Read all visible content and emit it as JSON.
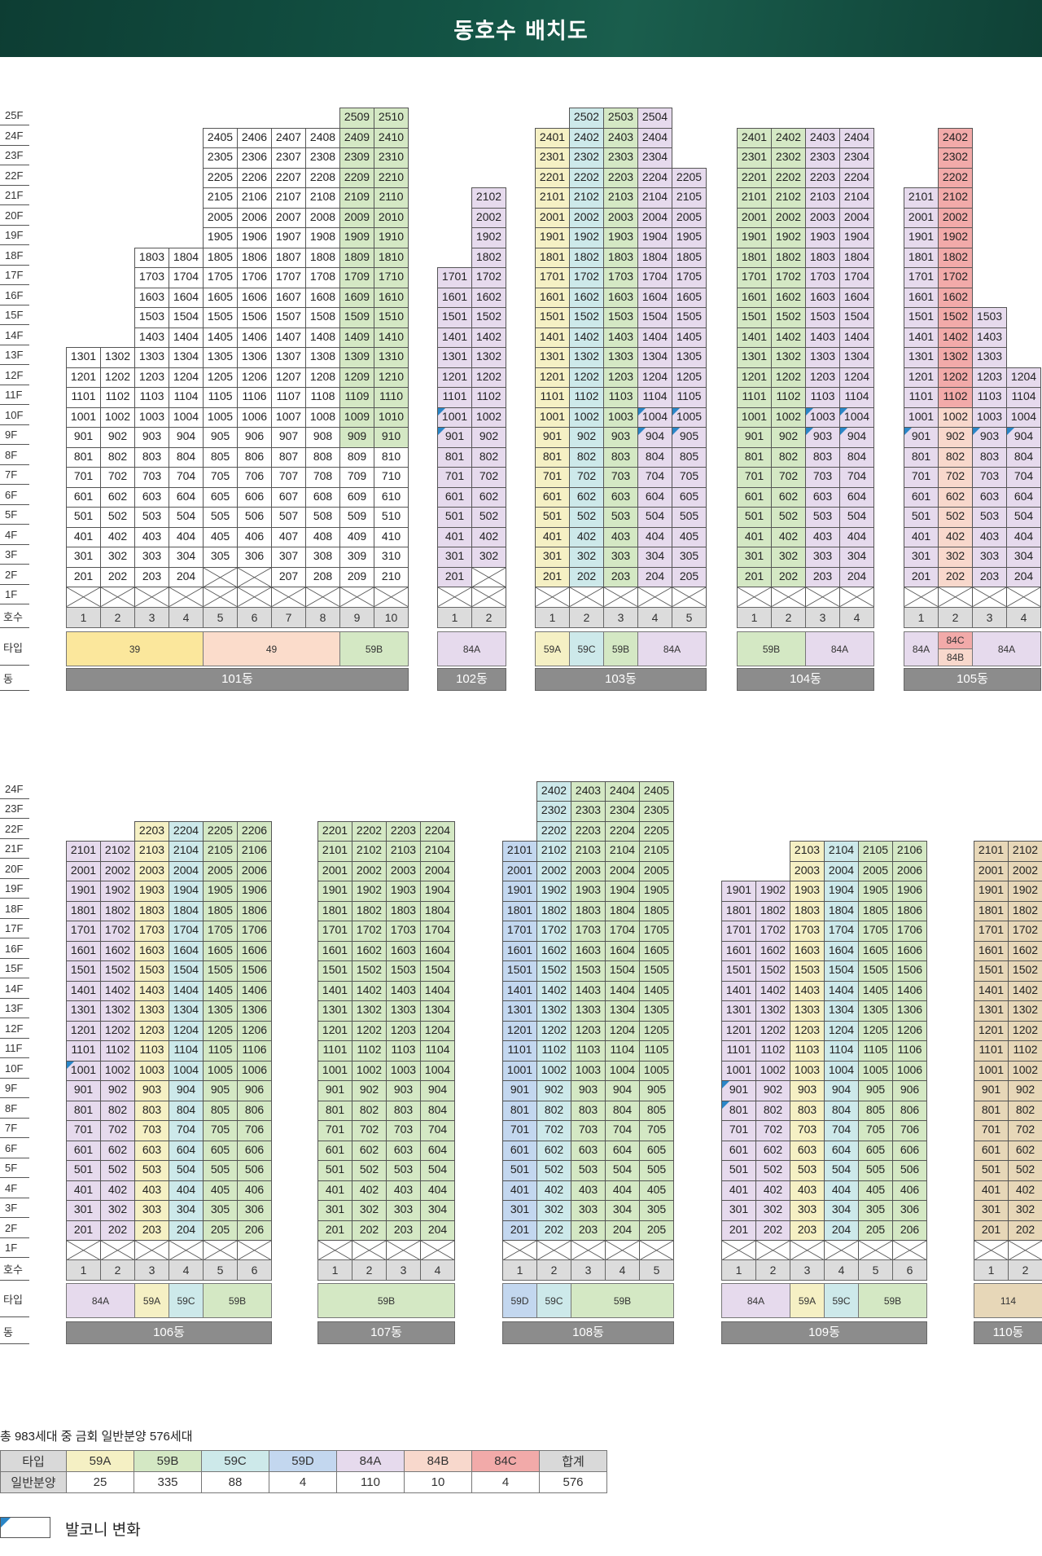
{
  "title": "동호수 배치도",
  "colors": {
    "59A": "#f5f0c4",
    "59B": "#d4e8c4",
    "59C": "#cde9ea",
    "59D": "#c3d7ef",
    "84A": "#e6daed",
    "84B": "#f8d8cc",
    "84C": "#f2aaa9",
    "39": "#fbe79c",
    "49": "#fbdccb",
    "114": "#e7d7b8",
    "balcony": "#2a86c7"
  },
  "labels": {
    "hosu": "호수",
    "type": "타입",
    "dong": "동"
  },
  "floors": [
    "1F",
    "2F",
    "3F",
    "4F",
    "5F",
    "6F",
    "7F",
    "8F",
    "9F",
    "10F",
    "11F",
    "12F",
    "13F",
    "14F",
    "15F",
    "16F",
    "17F",
    "18F",
    "19F",
    "20F",
    "21F",
    "22F",
    "23F",
    "24F",
    "25F"
  ],
  "buildings": [
    {
      "name": "101동",
      "row": 0,
      "cols": [
        {
          "n": 1,
          "t": "39",
          "top": 13,
          "w": []
        },
        {
          "n": 2,
          "t": "39",
          "top": 13,
          "w": []
        },
        {
          "n": 3,
          "t": "39",
          "top": 18,
          "w": [],
          "x1": []
        },
        {
          "n": 4,
          "t": "39",
          "top": 18,
          "x1": []
        },
        {
          "n": 5,
          "t": "49",
          "top": 24,
          "x2": true
        },
        {
          "n": 6,
          "t": "49",
          "top": 24,
          "x2": true
        },
        {
          "n": 7,
          "t": "49",
          "top": 24
        },
        {
          "n": 8,
          "t": "49",
          "top": 24
        },
        {
          "n": 9,
          "t": "59B",
          "top": 25
        },
        {
          "n": 10,
          "t": "59B",
          "top": 25
        }
      ],
      "types": [
        {
          "label": "39",
          "span": 4,
          "t": "39"
        },
        {
          "label": "49",
          "span": 4,
          "t": "49"
        },
        {
          "label": "59B",
          "span": 2,
          "t": "59B"
        }
      ]
    },
    {
      "name": "102동",
      "row": 0,
      "cols": [
        {
          "n": 1,
          "t": "84A",
          "top": 17,
          "bal": [
            9,
            10
          ]
        },
        {
          "n": 2,
          "t": "84A",
          "top": 21,
          "x2": true
        }
      ],
      "types": [
        {
          "label": "84A",
          "span": 2,
          "t": "84A"
        }
      ]
    },
    {
      "name": "103동",
      "row": 0,
      "cols": [
        {
          "n": 1,
          "t": "59A",
          "top": 24
        },
        {
          "n": 2,
          "t": "59C",
          "top": 25
        },
        {
          "n": 3,
          "t": "59B",
          "top": 25
        },
        {
          "n": 4,
          "t": "84A",
          "top": 25,
          "bal": [
            9,
            10
          ]
        },
        {
          "n": 5,
          "t": "84A",
          "top": 22,
          "bal": [
            9,
            10
          ]
        }
      ],
      "types": [
        {
          "label": "59A",
          "span": 1,
          "t": "59A"
        },
        {
          "label": "59C",
          "span": 1,
          "t": "59C"
        },
        {
          "label": "59B",
          "span": 1,
          "t": "59B"
        },
        {
          "label": "84A",
          "span": 2,
          "t": "84A"
        }
      ]
    },
    {
      "name": "104동",
      "row": 0,
      "cols": [
        {
          "n": 1,
          "t": "59B",
          "top": 24
        },
        {
          "n": 2,
          "t": "59B",
          "top": 24
        },
        {
          "n": 3,
          "t": "84A",
          "top": 24,
          "bal": [
            9,
            10
          ]
        },
        {
          "n": 4,
          "t": "84A",
          "top": 24,
          "bal": [
            9,
            10
          ]
        }
      ],
      "types": [
        {
          "label": "59B",
          "span": 2,
          "t": "59B"
        },
        {
          "label": "84A",
          "span": 2,
          "t": "84A"
        }
      ]
    },
    {
      "name": "105동",
      "row": 0,
      "cols": [
        {
          "n": 1,
          "t": "84A",
          "top": 21,
          "bal": [
            9
          ]
        },
        {
          "n": 2,
          "t": "84C",
          "top": 24,
          "split": "84B"
        },
        {
          "n": 3,
          "t": "84A",
          "top": 15,
          "bal": [
            9
          ]
        },
        {
          "n": 4,
          "t": "84A",
          "top": 12,
          "bal": [
            9
          ]
        }
      ],
      "types": [
        {
          "label": "84A",
          "span": 1,
          "t": "84A"
        },
        {
          "label": "84C",
          "span": 1,
          "t": "84C",
          "sub": "84B"
        },
        {
          "label": "84A",
          "span": 2,
          "t": "84A"
        }
      ]
    },
    {
      "name": "106동",
      "row": 1,
      "cols": [
        {
          "n": 1,
          "t": "84A",
          "top": 21,
          "bal": [
            10
          ]
        },
        {
          "n": 2,
          "t": "84A",
          "top": 21
        },
        {
          "n": 3,
          "t": "59A",
          "top": 22
        },
        {
          "n": 4,
          "t": "59C",
          "top": 22
        },
        {
          "n": 5,
          "t": "59B",
          "top": 22
        },
        {
          "n": 6,
          "t": "59B",
          "top": 22
        }
      ],
      "types": [
        {
          "label": "84A",
          "span": 2,
          "t": "84A"
        },
        {
          "label": "59A",
          "span": 1,
          "t": "59A"
        },
        {
          "label": "59C",
          "span": 1,
          "t": "59C"
        },
        {
          "label": "59B",
          "span": 2,
          "t": "59B"
        }
      ]
    },
    {
      "name": "107동",
      "row": 1,
      "cols": [
        {
          "n": 1,
          "t": "59B",
          "top": 22
        },
        {
          "n": 2,
          "t": "59B",
          "top": 22
        },
        {
          "n": 3,
          "t": "59B",
          "top": 22
        },
        {
          "n": 4,
          "t": "59B",
          "top": 22
        }
      ],
      "types": [
        {
          "label": "59B",
          "span": 4,
          "t": "59B"
        }
      ]
    },
    {
      "name": "108동",
      "row": 1,
      "cols": [
        {
          "n": 1,
          "t": "59D",
          "top": 21
        },
        {
          "n": 2,
          "t": "59C",
          "top": 24
        },
        {
          "n": 3,
          "t": "59B",
          "top": 24
        },
        {
          "n": 4,
          "t": "59B",
          "top": 24
        },
        {
          "n": 5,
          "t": "59B",
          "top": 24
        }
      ],
      "types": [
        {
          "label": "59D",
          "span": 1,
          "t": "59D"
        },
        {
          "label": "59C",
          "span": 1,
          "t": "59C"
        },
        {
          "label": "59B",
          "span": 3,
          "t": "59B"
        }
      ]
    },
    {
      "name": "109동",
      "row": 1,
      "cols": [
        {
          "n": 1,
          "t": "84A",
          "top": 19,
          "bal": [
            8,
            9
          ]
        },
        {
          "n": 2,
          "t": "84A",
          "top": 19
        },
        {
          "n": 3,
          "t": "59A",
          "top": 21
        },
        {
          "n": 4,
          "t": "59C",
          "top": 21
        },
        {
          "n": 5,
          "t": "59B",
          "top": 21
        },
        {
          "n": 6,
          "t": "59B",
          "top": 21
        }
      ],
      "types": [
        {
          "label": "84A",
          "span": 2,
          "t": "84A"
        },
        {
          "label": "59A",
          "span": 1,
          "t": "59A"
        },
        {
          "label": "59C",
          "span": 1,
          "t": "59C"
        },
        {
          "label": "59B",
          "span": 2,
          "t": "59B"
        }
      ]
    },
    {
      "name": "110동",
      "row": 1,
      "cols": [
        {
          "n": 1,
          "t": "114",
          "top": 21
        },
        {
          "n": 2,
          "t": "114",
          "top": 21
        }
      ],
      "types": [
        {
          "label": "114",
          "span": 2,
          "t": "114"
        }
      ]
    }
  ],
  "summary": "총 983세대 중 금회 일반분양 576세대",
  "legend": {
    "header": [
      "타입",
      "59A",
      "59B",
      "59C",
      "59D",
      "84A",
      "84B",
      "84C",
      "합계"
    ],
    "counts": [
      "일반분양",
      "25",
      "335",
      "88",
      "4",
      "110",
      "10",
      "4",
      "576"
    ]
  },
  "balcony_label": "발코니 변화"
}
